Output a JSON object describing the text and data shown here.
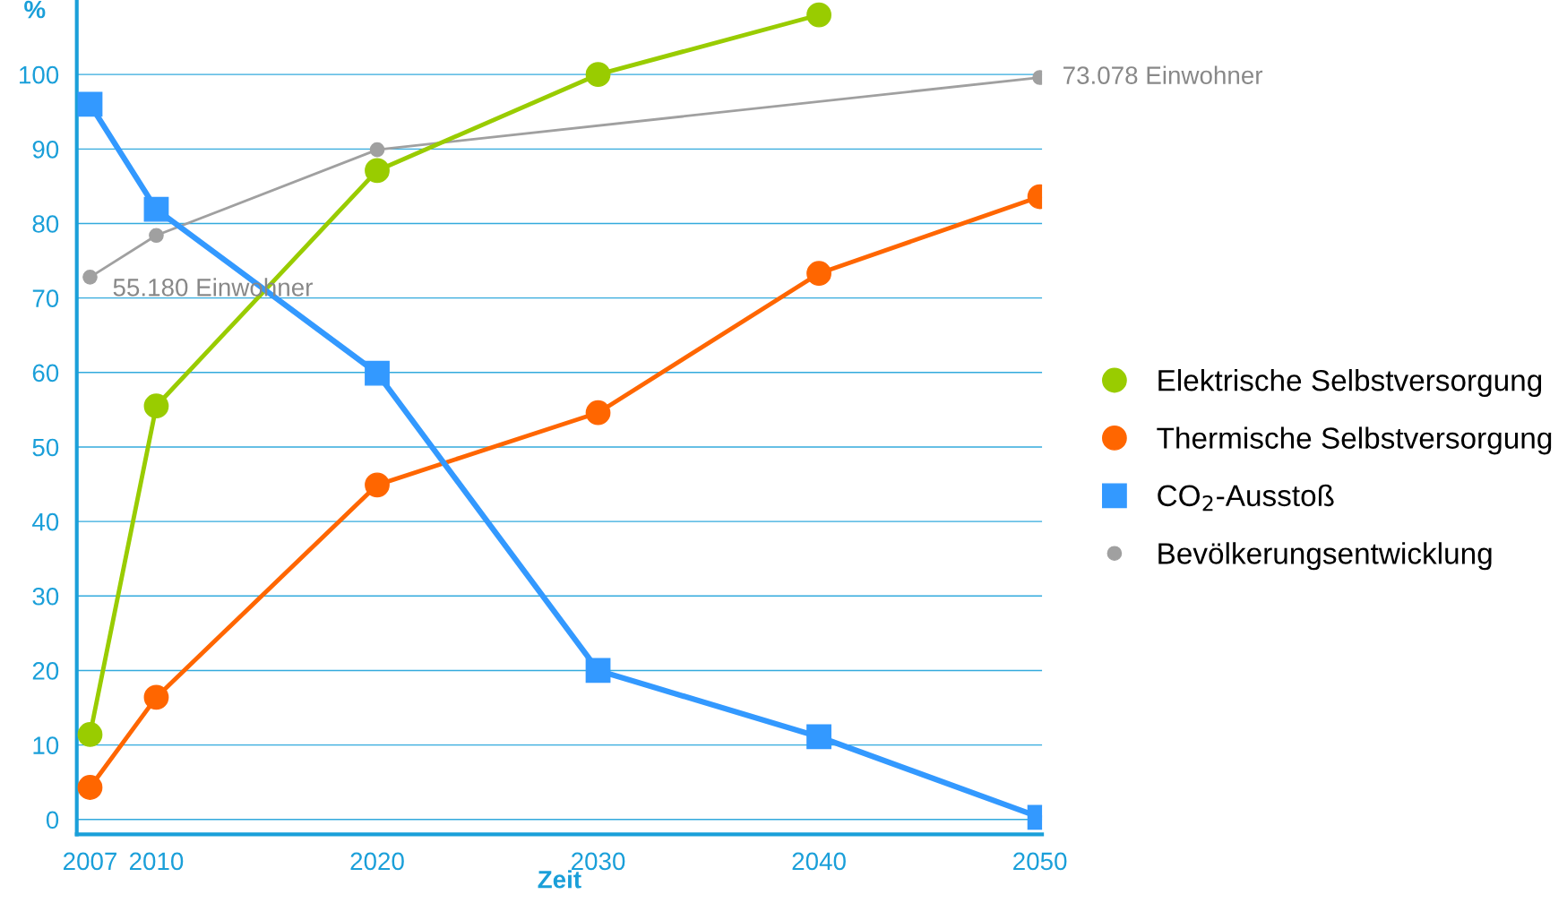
{
  "chart_data": {
    "type": "line",
    "xlabel": "Zeit",
    "ylabel": "%",
    "xlim": [
      2006.4,
      2050.1
    ],
    "xticks": [
      2007,
      2010,
      2020,
      2030,
      2040,
      2050
    ],
    "ylim": [
      -2,
      110
    ],
    "yticks": [
      0,
      10,
      20,
      30,
      40,
      50,
      60,
      70,
      80,
      90,
      100
    ],
    "grid": "y",
    "legend": "right",
    "series": [
      {
        "name": "Elektrische Selbstversorgung",
        "color": "#99cc00",
        "marker": "circle",
        "x": [
          2007,
          2010,
          2020,
          2030,
          2040
        ],
        "values": [
          11.4,
          55.5,
          87.1,
          100,
          108
        ]
      },
      {
        "name": "Thermische Selbstversorgung",
        "color": "#ff6600",
        "marker": "circle",
        "x": [
          2007,
          2010,
          2020,
          2030,
          2040,
          2050
        ],
        "values": [
          4.3,
          16.4,
          44.9,
          54.6,
          73.3,
          83.6
        ]
      },
      {
        "name": "CO$_{2}$-Ausstoß",
        "color": "#3399ff",
        "marker": "square",
        "x": [
          2007,
          2010,
          2020,
          2030,
          2040,
          2050
        ],
        "values": [
          96,
          81.9,
          59.9,
          20,
          11.1,
          0.3
        ]
      },
      {
        "name": "Bevölkerungsentwicklung",
        "color": "#a0a0a0",
        "marker": "circle",
        "x": [
          2007,
          2010,
          2020,
          2050
        ],
        "values": [
          72.8,
          78.4,
          89.9,
          99.6
        ]
      }
    ],
    "annotations": [
      {
        "text": "55.180 Einwohner",
        "x": 2007,
        "y": 72.8
      },
      {
        "text": "73.078 Einwohner",
        "x": 2050,
        "y": 99.6
      }
    ]
  }
}
